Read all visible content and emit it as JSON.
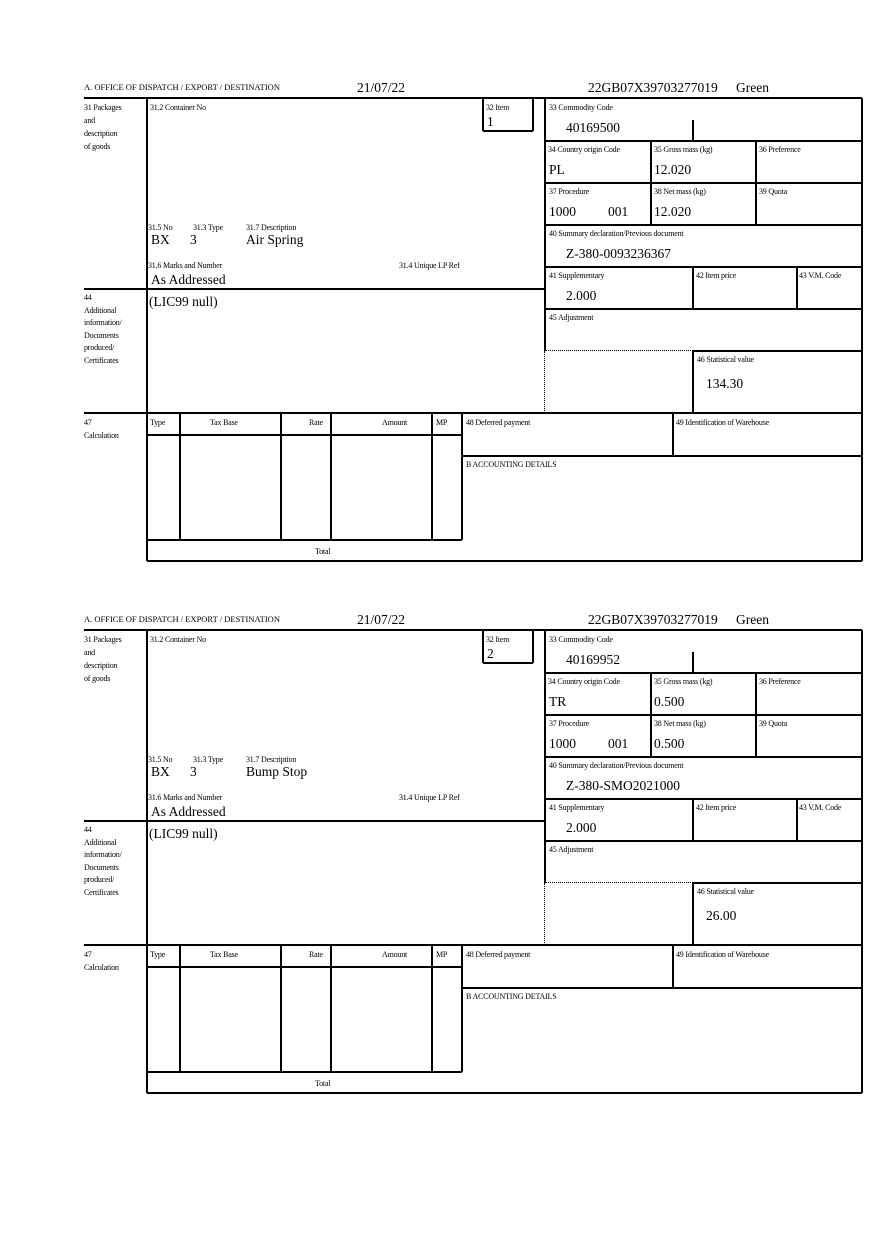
{
  "labels": {
    "office": "A.  OFFICE OF DISPATCH / EXPORT / DESTINATION",
    "packages": [
      "31 Packages",
      "and",
      "description",
      "of goods"
    ],
    "container_no": "31.2 Container No",
    "item": "32 Item",
    "no": "31.5 No",
    "type": "31.3 Type",
    "description": "31.7 Description",
    "marks": "31.6 Marks and Number",
    "unique_lp_ref": "31.4 Unique LP Ref",
    "additional": [
      "44",
      "Additional",
      "information/",
      "Documents",
      "produced/",
      "Certificates"
    ],
    "commodity_code": "33 Commodity Code",
    "country_origin": "34 Country origin Code",
    "gross_mass": "35 Gross mass (kg)",
    "preference": "36 Preference",
    "procedure": "37 Procedure",
    "net_mass": "38 Net mass (kg)",
    "quota": "39 Quota",
    "summary_declaration": "40 Summary declaration/Previous document",
    "supplementary": "41 Supplementary",
    "item_price": "42 Item price",
    "vm_code": "43 V.M. Code",
    "adjustment": "45 Adjustment",
    "statistical_value": "46 Statistical value",
    "calculation": [
      "47",
      "Calculation"
    ],
    "calc_columns": [
      "Type",
      "Tax Base",
      "Rate",
      "Amount",
      "MP"
    ],
    "total": "Total",
    "deferred_payment": "48 Deferred payment",
    "warehouse": "49 Identification of Warehouse",
    "accounting": "B ACCOUNTING DETAILS"
  },
  "blocks": [
    {
      "date": "21/07/22",
      "reference": "22GB07X39703277019",
      "route": "Green",
      "item": "1",
      "no": "BX",
      "type": "3",
      "description": "Air Spring",
      "marks": "As Addressed",
      "additional_info": "(LIC99 null)",
      "commodity_code": "40169500",
      "country_origin": "PL",
      "gross_mass": "12.020",
      "procedure": "1000",
      "procedure_extra": "001",
      "net_mass": "12.020",
      "summary_declaration": "Z-380-0093236367",
      "supplementary": "2.000",
      "statistical_value": "134.30"
    },
    {
      "date": "21/07/22",
      "reference": "22GB07X39703277019",
      "route": "Green",
      "item": "2",
      "no": "BX",
      "type": "3",
      "description": "Bump Stop",
      "marks": "As Addressed",
      "additional_info": "(LIC99 null)",
      "commodity_code": "40169952",
      "country_origin": "TR",
      "gross_mass": "0.500",
      "procedure": "1000",
      "procedure_extra": "001",
      "net_mass": "0.500",
      "summary_declaration": "Z-380-SMO2021000",
      "supplementary": "2.000",
      "statistical_value": "26.00"
    }
  ]
}
